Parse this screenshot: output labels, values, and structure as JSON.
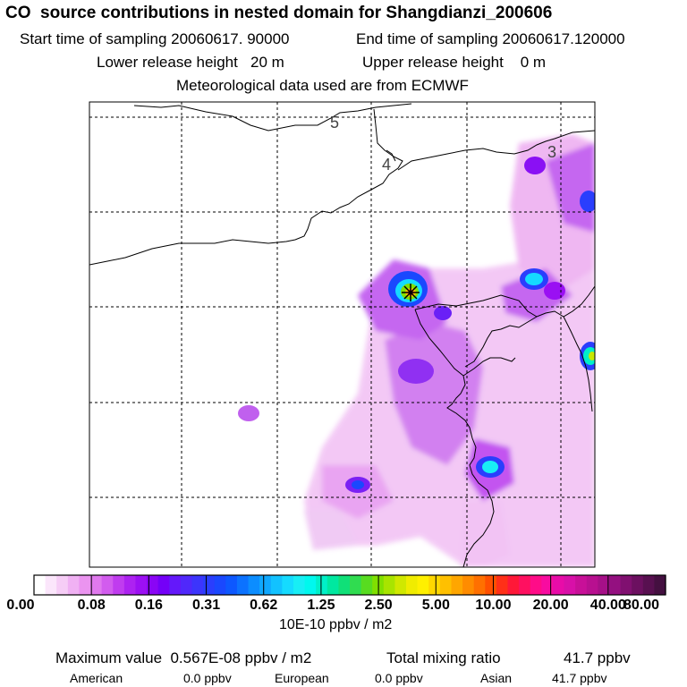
{
  "title": "CO  source contributions in nested domain for Shangdianzi_200606",
  "sampling": {
    "start_label": "Start time of sampling 20060617. 90000",
    "end_label": "End time of sampling 20060617.120000"
  },
  "release": {
    "lower_label": "Lower release height   20 m",
    "upper_label": "Upper release height    0 m"
  },
  "met_label": "Meteorological data used are from ECMWF",
  "map": {
    "region_labels": [
      "5",
      "4",
      "3"
    ],
    "receptor_marker": "star-icon",
    "colors": {
      "frame": "#000000",
      "grid": "#000000",
      "coast": "#000000"
    }
  },
  "colorbar": {
    "tick_labels": [
      "0.00",
      "0.08",
      "0.16",
      "0.31",
      "0.62",
      "1.25",
      "2.50",
      "5.00",
      "10.00",
      "20.00",
      "40.00",
      "80.00"
    ],
    "colors": [
      "#ffffff",
      "#fbe6fb",
      "#f6cdf6",
      "#f0b1f3",
      "#eb94f0",
      "#e079ee",
      "#d25cee",
      "#c03cef",
      "#ad22f1",
      "#9c10f3",
      "#8a05f5",
      "#7400f8",
      "#6418fa",
      "#5028fb",
      "#3c35fc",
      "#2a3efd",
      "#1a48fe",
      "#0d58ff",
      "#0c72ff",
      "#0c8dff",
      "#0fa8ff",
      "#12c2ff",
      "#15dbff",
      "#18eef5",
      "#00f8ee",
      "#00f0c8",
      "#00e8a0",
      "#10e078",
      "#30dc50",
      "#58dc20",
      "#80e000",
      "#a8e400",
      "#d0e800",
      "#f0ec00",
      "#fff000",
      "#ffd800",
      "#ffc000",
      "#ffa600",
      "#ff8c00",
      "#ff7000",
      "#ff5000",
      "#ff3018",
      "#ff1838",
      "#ff1060",
      "#ff0c88",
      "#f80ca0",
      "#e80ca8",
      "#d810a8",
      "#c81098",
      "#b81090",
      "#a61088",
      "#941080",
      "#801070",
      "#6c1060",
      "#581050",
      "#441040"
    ],
    "unit_label": "10E-10 ppbv / m2"
  },
  "summary": {
    "max_label": "Maximum value  0.567E-08 ppbv / m2",
    "total_label": "Total mixing ratio",
    "total_value": "41.7 ppbv",
    "american_label": "American",
    "american_value": "0.0 ppbv",
    "european_label": "European",
    "european_value": "0.0 ppbv",
    "asian_label": "Asian",
    "asian_value": "41.7 ppbv"
  }
}
